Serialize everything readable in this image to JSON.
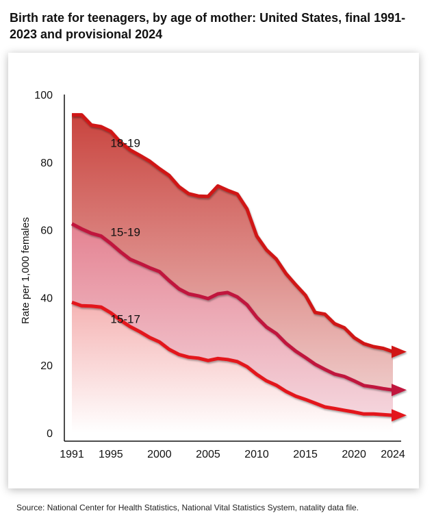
{
  "title": "Birth rate for teenagers, by age of mother: United States, final 1991-2023 and provisional 2024",
  "source": "Source: National Center for Health Statistics, National Vital Statistics System, natality data file.",
  "chart_data": {
    "type": "area",
    "ylabel": "Rate per 1,000 females",
    "xlabel": "",
    "ylim": [
      0,
      100
    ],
    "xlim": [
      1991,
      2024
    ],
    "y_ticks": [
      "0",
      "20",
      "40",
      "60",
      "80",
      "100"
    ],
    "x_ticks": [
      "1991",
      "1995",
      "2000",
      "2005",
      "2010",
      "2015",
      "2020",
      "2024"
    ],
    "grid": false,
    "x": [
      1991,
      1992,
      1993,
      1994,
      1995,
      1996,
      1997,
      1998,
      1999,
      2000,
      2001,
      2002,
      2003,
      2004,
      2005,
      2006,
      2007,
      2008,
      2009,
      2010,
      2011,
      2012,
      2013,
      2014,
      2015,
      2016,
      2017,
      2018,
      2019,
      2020,
      2021,
      2022,
      2023,
      2024
    ],
    "series": [
      {
        "name": "18-19",
        "color": "#cc1a1a",
        "values": [
          94.0,
          94.0,
          91.0,
          90.5,
          89.1,
          85.9,
          83.6,
          82.0,
          80.3,
          78.1,
          76.1,
          72.8,
          70.7,
          70.0,
          69.9,
          73.0,
          71.7,
          70.6,
          66.2,
          58.2,
          54.1,
          51.4,
          47.1,
          43.8,
          40.7,
          35.6,
          35.1,
          32.3,
          31.1,
          28.2,
          26.4,
          25.5,
          25.0,
          24.0
        ]
      },
      {
        "name": "15-19",
        "color": "#b3103a",
        "values": [
          61.8,
          60.3,
          59.0,
          58.2,
          56.0,
          53.5,
          51.3,
          50.1,
          48.8,
          47.7,
          45.0,
          42.6,
          41.1,
          40.5,
          39.7,
          41.1,
          41.5,
          40.2,
          37.9,
          34.2,
          31.3,
          29.4,
          26.5,
          24.2,
          22.3,
          20.3,
          18.8,
          17.4,
          16.7,
          15.4,
          14.0,
          13.6,
          13.1,
          12.7
        ]
      },
      {
        "name": "15-17",
        "color": "#e0201a",
        "values": [
          38.6,
          37.6,
          37.5,
          37.2,
          35.5,
          33.3,
          31.4,
          29.9,
          28.2,
          26.9,
          24.7,
          23.2,
          22.4,
          22.1,
          21.4,
          22.0,
          21.7,
          21.1,
          19.6,
          17.3,
          15.4,
          14.1,
          12.3,
          10.9,
          9.9,
          8.8,
          7.7,
          7.2,
          6.7,
          6.2,
          5.6,
          5.6,
          5.4,
          5.2
        ]
      }
    ]
  }
}
